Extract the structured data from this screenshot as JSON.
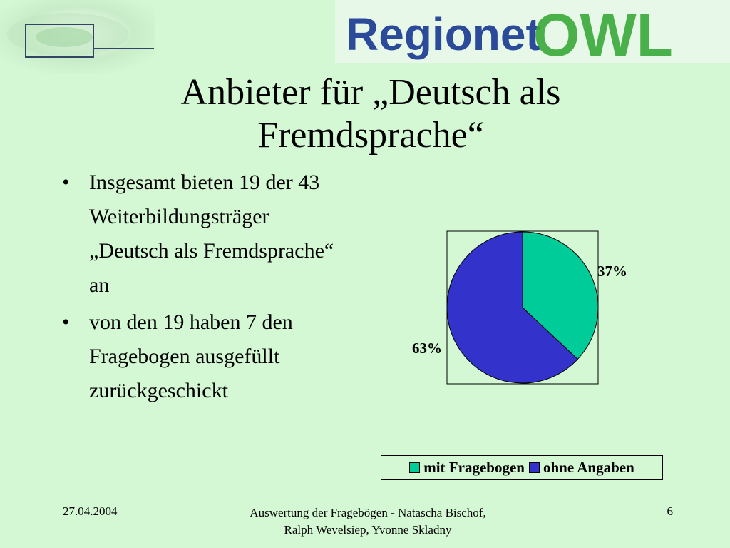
{
  "header": {
    "logo_text": "Regionet",
    "logo_suffix": "OWL"
  },
  "slide": {
    "title": "Anbieter für „Deutsch als Fremdsprache“",
    "bullets": [
      "Insgesamt bieten 19 der 43 Weiterbildungsträger „Deutsch als Fremdsprache“ an",
      "von den 19 haben 7 den Fragebogen ausgefüllt zurückgeschickt"
    ]
  },
  "chart_data": {
    "type": "pie",
    "categories": [
      "mit Fragebogen",
      "ohne Angaben"
    ],
    "values": [
      37,
      63
    ],
    "labels": [
      "37%",
      "63%"
    ],
    "colors": [
      "#00cc99",
      "#3333cc"
    ],
    "legend_position": "bottom"
  },
  "footer": {
    "date": "27.04.2004",
    "center": "Auswertung der Fragebögen - Natascha Bischof, Ralph Wevelsiep, Yvonne Skladny",
    "page": "6"
  }
}
